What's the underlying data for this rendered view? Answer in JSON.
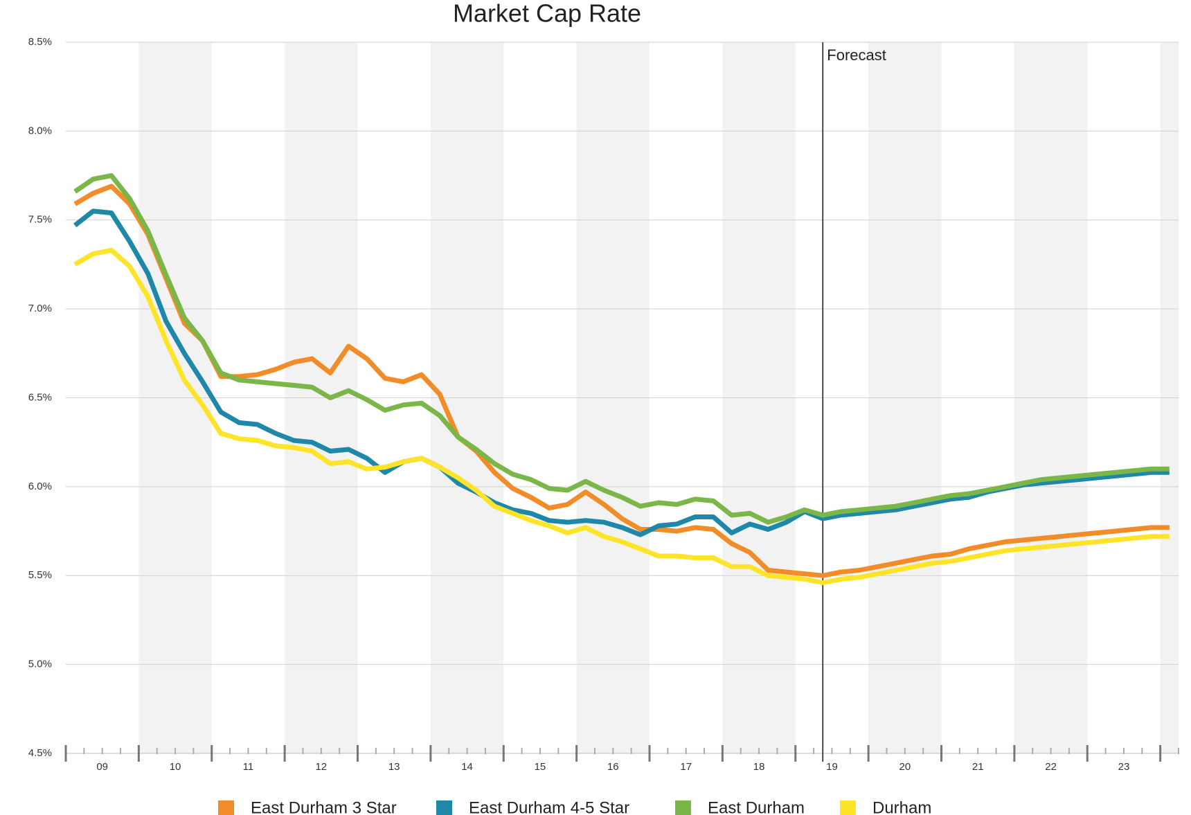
{
  "chart_data": {
    "type": "line",
    "title": "Market Cap Rate",
    "x": [
      2009.125,
      2009.375,
      2009.625,
      2009.875,
      2010.125,
      2010.375,
      2010.625,
      2010.875,
      2011.125,
      2011.375,
      2011.625,
      2011.875,
      2012.125,
      2012.375,
      2012.625,
      2012.875,
      2013.125,
      2013.375,
      2013.625,
      2013.875,
      2014.125,
      2014.375,
      2014.625,
      2014.875,
      2015.125,
      2015.375,
      2015.625,
      2015.875,
      2016.125,
      2016.375,
      2016.625,
      2016.875,
      2017.125,
      2017.375,
      2017.625,
      2017.875,
      2018.125,
      2018.375,
      2018.625,
      2018.875,
      2019.125,
      2019.375,
      2019.625,
      2019.875,
      2020.125,
      2020.375,
      2020.625,
      2020.875,
      2021.125,
      2021.375,
      2021.625,
      2021.875,
      2022.125,
      2022.375,
      2022.625,
      2022.875,
      2023.125,
      2023.375,
      2023.625,
      2023.875,
      2024.125
    ],
    "series": [
      {
        "name": "East Durham 3 Star",
        "color": "#f28c28",
        "values": [
          7.59,
          7.65,
          7.69,
          7.59,
          7.42,
          7.17,
          6.92,
          6.82,
          6.62,
          6.62,
          6.63,
          6.66,
          6.7,
          6.72,
          6.64,
          6.79,
          6.72,
          6.61,
          6.59,
          6.63,
          6.52,
          6.28,
          6.2,
          6.08,
          5.99,
          5.94,
          5.88,
          5.9,
          5.97,
          5.9,
          5.82,
          5.76,
          5.76,
          5.75,
          5.77,
          5.76,
          5.68,
          5.63,
          5.53,
          5.52,
          5.51,
          5.5,
          5.52,
          5.53,
          5.55,
          5.57,
          5.59,
          5.61,
          5.62,
          5.65,
          5.67,
          5.69,
          5.7,
          5.71,
          5.72,
          5.73,
          5.74,
          5.75,
          5.76,
          5.77,
          5.77
        ]
      },
      {
        "name": "East Durham 4-5 Star",
        "color": "#1f88a8",
        "values": [
          7.47,
          7.55,
          7.54,
          7.38,
          7.2,
          6.93,
          6.75,
          6.59,
          6.42,
          6.36,
          6.35,
          6.3,
          6.26,
          6.25,
          6.2,
          6.21,
          6.16,
          6.08,
          6.14,
          6.16,
          6.11,
          6.02,
          5.97,
          5.91,
          5.87,
          5.85,
          5.81,
          5.8,
          5.81,
          5.8,
          5.77,
          5.73,
          5.78,
          5.79,
          5.83,
          5.83,
          5.74,
          5.79,
          5.76,
          5.8,
          5.86,
          5.82,
          5.84,
          5.85,
          5.86,
          5.87,
          5.89,
          5.91,
          5.93,
          5.94,
          5.97,
          5.99,
          6.01,
          6.02,
          6.03,
          6.04,
          6.05,
          6.06,
          6.07,
          6.08,
          6.08
        ]
      },
      {
        "name": "East Durham",
        "color": "#7ab648",
        "values": [
          7.66,
          7.73,
          7.75,
          7.62,
          7.44,
          7.19,
          6.95,
          6.82,
          6.64,
          6.6,
          6.59,
          6.58,
          6.57,
          6.56,
          6.5,
          6.54,
          6.49,
          6.43,
          6.46,
          6.47,
          6.4,
          6.28,
          6.21,
          6.13,
          6.07,
          6.04,
          5.99,
          5.98,
          6.03,
          5.98,
          5.94,
          5.89,
          5.91,
          5.9,
          5.93,
          5.92,
          5.84,
          5.85,
          5.8,
          5.83,
          5.87,
          5.84,
          5.86,
          5.87,
          5.88,
          5.89,
          5.91,
          5.93,
          5.95,
          5.96,
          5.98,
          6.0,
          6.02,
          6.04,
          6.05,
          6.06,
          6.07,
          6.08,
          6.09,
          6.1,
          6.1
        ]
      },
      {
        "name": "Durham",
        "color": "#fde428",
        "values": [
          7.25,
          7.31,
          7.33,
          7.24,
          7.07,
          6.82,
          6.6,
          6.46,
          6.3,
          6.27,
          6.26,
          6.23,
          6.22,
          6.2,
          6.13,
          6.14,
          6.1,
          6.11,
          6.14,
          6.16,
          6.11,
          6.05,
          5.98,
          5.89,
          5.85,
          5.81,
          5.78,
          5.74,
          5.77,
          5.72,
          5.69,
          5.65,
          5.61,
          5.61,
          5.6,
          5.6,
          5.55,
          5.55,
          5.5,
          5.49,
          5.48,
          5.46,
          5.48,
          5.49,
          5.51,
          5.53,
          5.55,
          5.57,
          5.58,
          5.6,
          5.62,
          5.64,
          5.65,
          5.66,
          5.67,
          5.68,
          5.69,
          5.7,
          5.71,
          5.72,
          5.72
        ]
      }
    ],
    "xlim": [
      2009,
      2024.25
    ],
    "xticks": [
      {
        "value": 2009.5,
        "label": "09"
      },
      {
        "value": 2010.5,
        "label": "10"
      },
      {
        "value": 2011.5,
        "label": "11"
      },
      {
        "value": 2012.5,
        "label": "12"
      },
      {
        "value": 2013.5,
        "label": "13"
      },
      {
        "value": 2014.5,
        "label": "14"
      },
      {
        "value": 2015.5,
        "label": "15"
      },
      {
        "value": 2016.5,
        "label": "16"
      },
      {
        "value": 2017.5,
        "label": "17"
      },
      {
        "value": 2018.5,
        "label": "18"
      },
      {
        "value": 2019.5,
        "label": "19"
      },
      {
        "value": 2020.5,
        "label": "20"
      },
      {
        "value": 2021.5,
        "label": "21"
      },
      {
        "value": 2022.5,
        "label": "22"
      },
      {
        "value": 2023.5,
        "label": "23"
      }
    ],
    "ylim": [
      4.5,
      8.5
    ],
    "yticks": [
      {
        "value": 4.5,
        "label": "4.5%"
      },
      {
        "value": 5.0,
        "label": "5.0%"
      },
      {
        "value": 5.5,
        "label": "5.5%"
      },
      {
        "value": 6.0,
        "label": "6.0%"
      },
      {
        "value": 6.5,
        "label": "6.5%"
      },
      {
        "value": 7.0,
        "label": "7.0%"
      },
      {
        "value": 7.5,
        "label": "7.5%"
      },
      {
        "value": 8.0,
        "label": "8.0%"
      },
      {
        "value": 8.5,
        "label": "8.5%"
      }
    ],
    "grid": true,
    "annotations": [
      {
        "label": "Forecast",
        "x": 2019.375
      }
    ],
    "legend": "bottom"
  }
}
